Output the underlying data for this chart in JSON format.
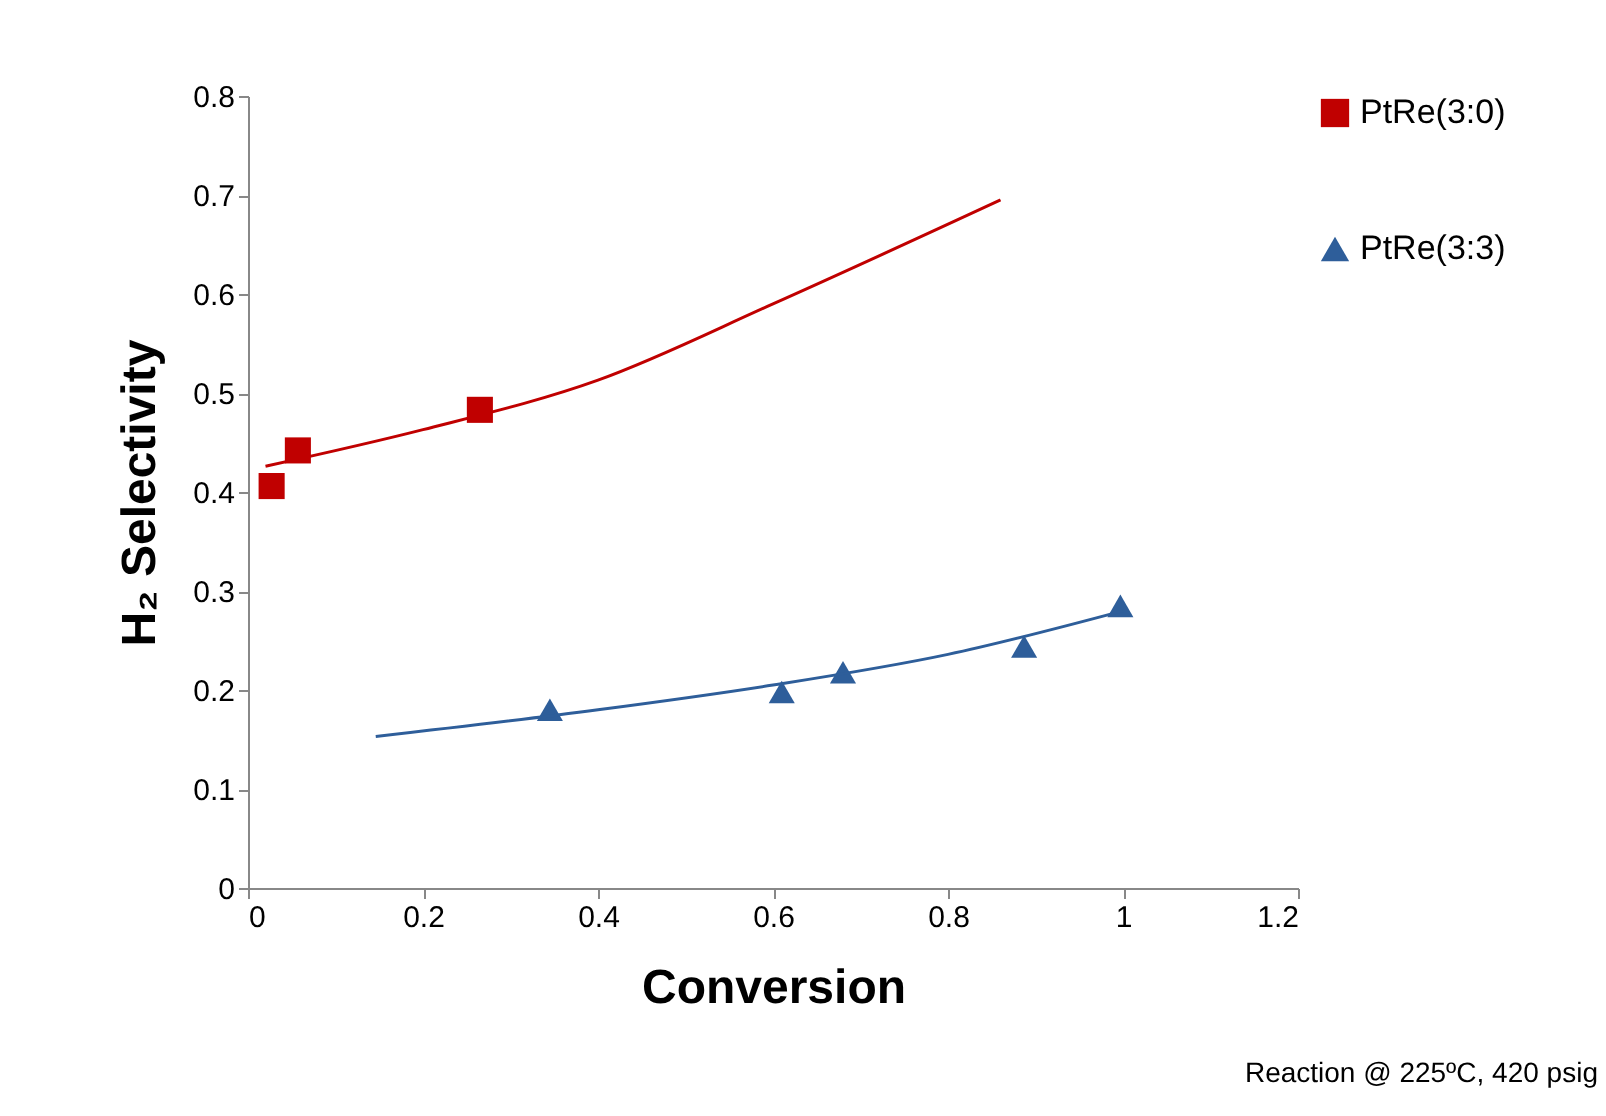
{
  "chart_data": {
    "type": "scatter",
    "xlabel": "Conversion",
    "ylabel": "H₂ Selectivity",
    "xlim": [
      0,
      1.2
    ],
    "xticks": [
      0,
      0.2,
      0.4,
      0.6,
      0.8,
      1,
      1.2
    ],
    "ylim": [
      0,
      0.8
    ],
    "yticks": [
      0,
      0.1,
      0.2,
      0.3,
      0.4,
      0.5,
      0.6,
      0.7,
      0.8
    ],
    "grid": false,
    "legend": "right",
    "annotations": [
      "Reaction @ 225ºC, 420 psig"
    ],
    "series": [
      {
        "name": "PtRe(3:0)",
        "marker": "square",
        "color": "#c00000",
        "x": [
          0.027,
          0.057,
          0.265
        ],
        "values": [
          0.406,
          0.442,
          0.483
        ]
      },
      {
        "name": "PtRe(3:3)",
        "marker": "triangle",
        "color": "#2e5e9a",
        "x": [
          0.345,
          0.61,
          0.68,
          0.887,
          0.997
        ],
        "values": [
          0.18,
          0.198,
          0.218,
          0.244,
          0.285
        ]
      },
      {
        "type": "line",
        "marker": "none",
        "color": "#c00000",
        "x": [
          0.02,
          0.2,
          0.4,
          0.6,
          0.86
        ],
        "values": [
          0.426,
          0.463,
          0.513,
          0.59,
          0.695
        ]
      },
      {
        "type": "line",
        "marker": "none",
        "color": "#2e5e9a",
        "x": [
          0.146,
          0.4,
          0.6,
          0.8,
          1.0
        ],
        "values": [
          0.153,
          0.18,
          0.205,
          0.236,
          0.28
        ]
      }
    ]
  }
}
